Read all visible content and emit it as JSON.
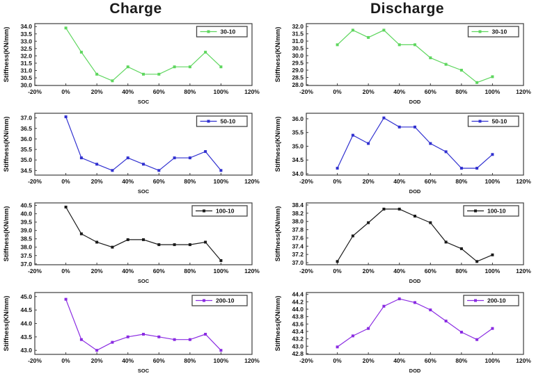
{
  "page": {
    "background": "#ffffff"
  },
  "columns": [
    {
      "title": "Charge"
    },
    {
      "title": "Discharge"
    }
  ],
  "axis_text": {
    "ylabel": "Stiffness(KN/mm)",
    "xticks": [
      "-20%",
      "0%",
      "20%",
      "40%",
      "60%",
      "80%",
      "100%",
      "120%"
    ]
  },
  "colors": {
    "series_30_10": "#5ed65e",
    "series_50_10": "#3030d0",
    "series_100_10": "#1a1a1a",
    "series_200_10": "#8a2be2",
    "frame": "#3d3d3d",
    "legend_border": "#444444"
  },
  "chart_data": [
    {
      "type": "line",
      "title": "Charge 30-10",
      "legend": "30-10",
      "color": "#5ed65e",
      "xlabel": "SOC",
      "ylabel": "Stiffness(KN/mm)",
      "x": [
        0,
        10,
        20,
        30,
        40,
        50,
        60,
        70,
        80,
        90,
        100
      ],
      "values": [
        33.9,
        32.25,
        30.75,
        30.3,
        31.25,
        30.75,
        30.75,
        31.25,
        31.25,
        32.25,
        31.25
      ],
      "xlim": [
        -20,
        120
      ],
      "xtick_step": 20,
      "ylim": [
        29.98,
        34.2
      ],
      "yticks": {
        "min": 30.0,
        "max": 34.0,
        "step": 0.5
      },
      "legend_position": "top-right",
      "grid": false
    },
    {
      "type": "line",
      "title": "Discharge 30-10",
      "legend": "30-10",
      "color": "#5ed65e",
      "xlabel": "DOD",
      "ylabel": "Stiffness(KN/mm)",
      "x": [
        0,
        10,
        20,
        30,
        40,
        50,
        60,
        70,
        80,
        90,
        100
      ],
      "values": [
        30.75,
        31.75,
        31.25,
        31.75,
        30.75,
        30.75,
        29.85,
        29.4,
        29.0,
        28.15,
        28.55
      ],
      "xlim": [
        -20,
        120
      ],
      "xtick_step": 20,
      "ylim": [
        27.95,
        32.2
      ],
      "yticks": {
        "min": 28.0,
        "max": 32.0,
        "step": 0.5
      },
      "legend_position": "top-right",
      "grid": false
    },
    {
      "type": "line",
      "title": "Charge 50-10",
      "legend": "50-10",
      "color": "#3030d0",
      "xlabel": "SOC",
      "ylabel": "Stiffness(KN/mm)",
      "x": [
        0,
        10,
        20,
        30,
        40,
        50,
        60,
        70,
        80,
        90,
        100
      ],
      "values": [
        37.05,
        35.1,
        34.8,
        34.5,
        35.1,
        34.8,
        34.5,
        35.1,
        35.1,
        35.4,
        34.5
      ],
      "xlim": [
        -20,
        120
      ],
      "xtick_step": 20,
      "ylim": [
        34.28,
        37.22
      ],
      "yticks": {
        "min": 34.5,
        "max": 37.0,
        "step": 0.5
      },
      "legend_position": "top-right",
      "grid": false
    },
    {
      "type": "line",
      "title": "Discharge 50-10",
      "legend": "50-10",
      "color": "#3030d0",
      "xlabel": "DOD",
      "ylabel": "Stiffness(KN/mm)",
      "x": [
        0,
        10,
        20,
        30,
        40,
        50,
        60,
        70,
        80,
        90,
        100
      ],
      "values": [
        34.2,
        35.4,
        35.1,
        36.03,
        35.7,
        35.7,
        35.1,
        34.8,
        34.2,
        34.2,
        34.7
      ],
      "xlim": [
        -20,
        120
      ],
      "xtick_step": 20,
      "ylim": [
        33.95,
        36.2
      ],
      "yticks": {
        "min": 34.0,
        "max": 36.0,
        "step": 0.5
      },
      "legend_position": "top-right",
      "grid": false
    },
    {
      "type": "line",
      "title": "Charge 100-10",
      "legend": "100-10",
      "color": "#1a1a1a",
      "xlabel": "SOC",
      "ylabel": "Stiffness(KN/mm)",
      "x": [
        0,
        10,
        20,
        30,
        40,
        50,
        60,
        70,
        80,
        90,
        100
      ],
      "values": [
        40.4,
        38.8,
        38.3,
        38.0,
        38.45,
        38.45,
        38.15,
        38.15,
        38.15,
        38.3,
        37.2
      ],
      "xlim": [
        -20,
        120
      ],
      "xtick_step": 20,
      "ylim": [
        36.95,
        40.65
      ],
      "yticks": {
        "min": 37.0,
        "max": 40.5,
        "step": 0.5
      },
      "legend_position": "top-right",
      "grid": false
    },
    {
      "type": "line",
      "title": "Discharge 100-10",
      "legend": "100-10",
      "color": "#1a1a1a",
      "xlabel": "DOD",
      "ylabel": "Stiffness(KN/mm)",
      "x": [
        0,
        10,
        20,
        30,
        40,
        50,
        60,
        70,
        80,
        90,
        100
      ],
      "values": [
        37.03,
        37.65,
        37.97,
        38.3,
        38.3,
        38.13,
        37.97,
        37.5,
        37.34,
        37.03,
        37.19
      ],
      "xlim": [
        -20,
        120
      ],
      "xtick_step": 20,
      "ylim": [
        36.95,
        38.45
      ],
      "yticks": {
        "min": 37.0,
        "max": 38.4,
        "step": 0.2
      },
      "legend_position": "top-right",
      "grid": false
    },
    {
      "type": "line",
      "title": "Charge 200-10",
      "legend": "200-10",
      "color": "#8a2be2",
      "xlabel": "SOC",
      "ylabel": "Stiffness(KN/mm)",
      "x": [
        0,
        10,
        20,
        30,
        40,
        50,
        60,
        70,
        80,
        90,
        100
      ],
      "values": [
        44.9,
        43.4,
        43.0,
        43.3,
        43.5,
        43.6,
        43.5,
        43.4,
        43.4,
        43.6,
        43.0
      ],
      "xlim": [
        -20,
        120
      ],
      "xtick_step": 20,
      "ylim": [
        42.85,
        45.15
      ],
      "yticks": {
        "min": 43.0,
        "max": 45.0,
        "step": 0.5
      },
      "legend_position": "top-right",
      "grid": false
    },
    {
      "type": "line",
      "title": "Discharge 200-10",
      "legend": "200-10",
      "color": "#8a2be2",
      "xlabel": "DOD",
      "ylabel": "Stiffness(KN/mm)",
      "x": [
        0,
        10,
        20,
        30,
        40,
        50,
        60,
        70,
        80,
        90,
        100
      ],
      "values": [
        42.98,
        43.28,
        43.48,
        44.08,
        44.28,
        44.18,
        43.98,
        43.68,
        43.38,
        43.18,
        43.48
      ],
      "xlim": [
        -20,
        120
      ],
      "xtick_step": 20,
      "ylim": [
        42.78,
        44.45
      ],
      "yticks": {
        "min": 42.8,
        "max": 44.4,
        "step": 0.2
      },
      "legend_position": "top-right",
      "grid": false
    }
  ]
}
